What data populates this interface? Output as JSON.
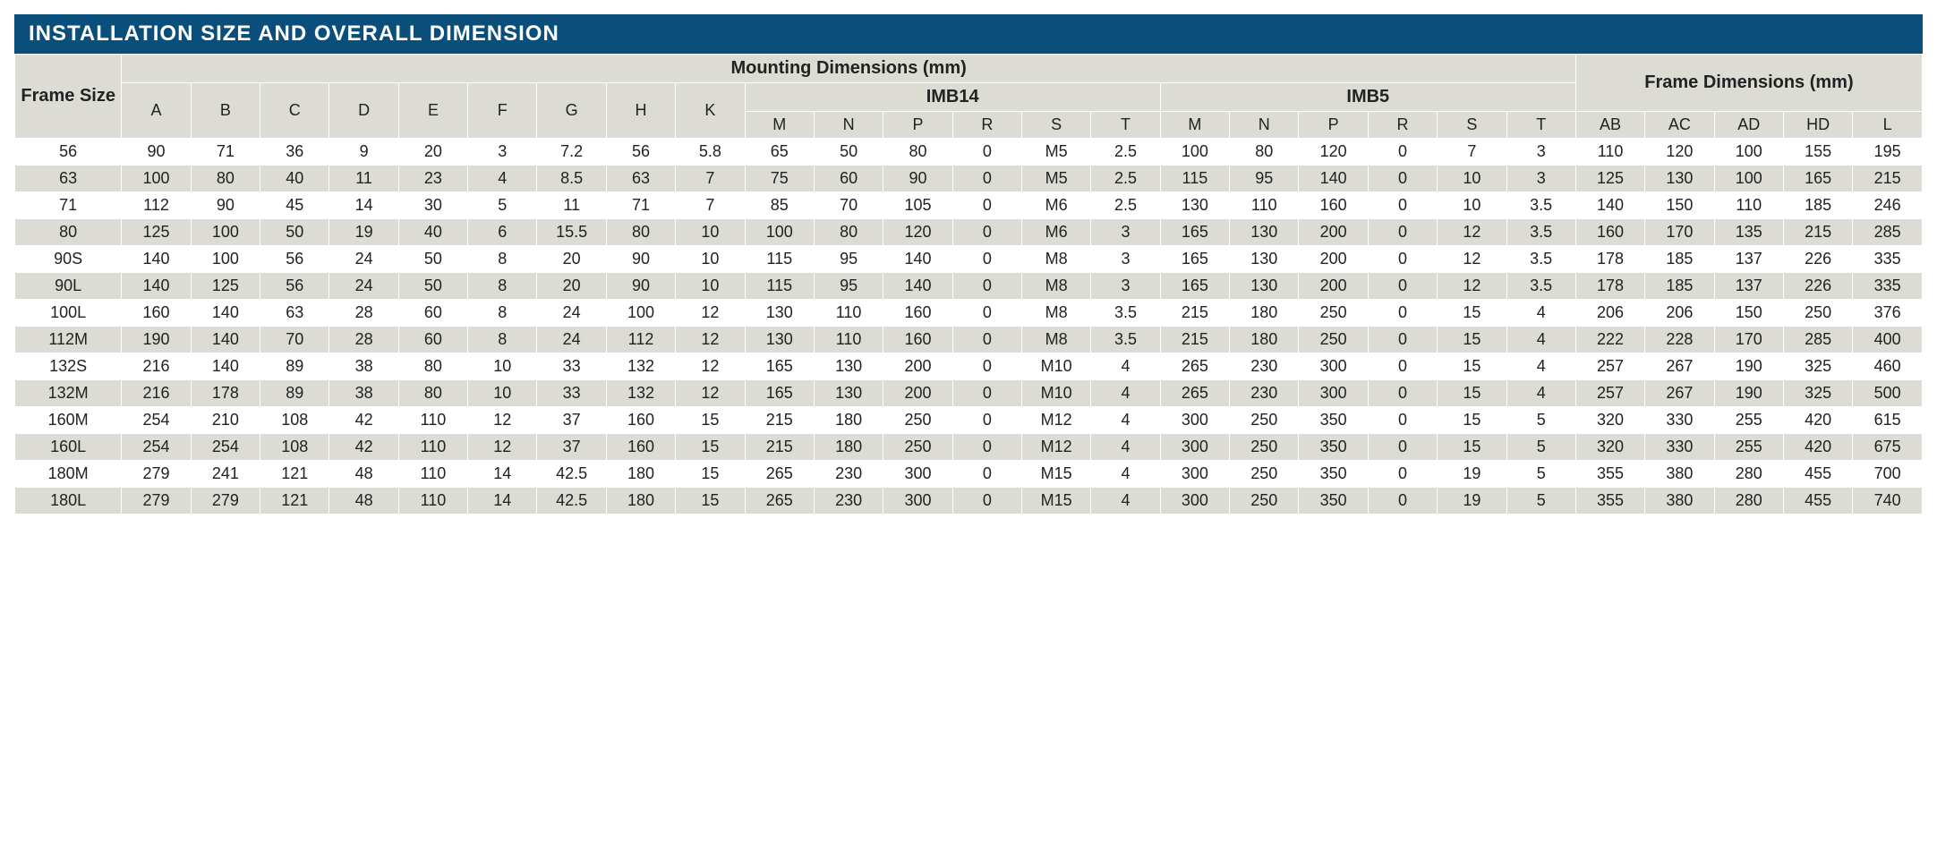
{
  "title": "INSTALLATION SIZE AND OVERALL DIMENSION",
  "group_headers": {
    "frame_size": "Frame Size",
    "mounting": "Mounting Dimensions (mm)",
    "imb14": "IMB14",
    "imb5": "IMB5",
    "frame_dims": "Frame Dimensions (mm)"
  },
  "columns": [
    "A",
    "B",
    "C",
    "D",
    "E",
    "F",
    "G",
    "H",
    "K",
    "M",
    "N",
    "P",
    "R",
    "S",
    "T",
    "M",
    "N",
    "P",
    "R",
    "S",
    "T",
    "AB",
    "AC",
    "AD",
    "HD",
    "L"
  ],
  "row_labels": [
    "56",
    "63",
    "71",
    "80",
    "90S",
    "90L",
    "100L",
    "112M",
    "132S",
    "132M",
    "160M",
    "160L",
    "180M",
    "180L"
  ],
  "rows": [
    [
      "90",
      "71",
      "36",
      "9",
      "20",
      "3",
      "7.2",
      "56",
      "5.8",
      "65",
      "50",
      "80",
      "0",
      "M5",
      "2.5",
      "100",
      "80",
      "120",
      "0",
      "7",
      "3",
      "110",
      "120",
      "100",
      "155",
      "195"
    ],
    [
      "100",
      "80",
      "40",
      "11",
      "23",
      "4",
      "8.5",
      "63",
      "7",
      "75",
      "60",
      "90",
      "0",
      "M5",
      "2.5",
      "115",
      "95",
      "140",
      "0",
      "10",
      "3",
      "125",
      "130",
      "100",
      "165",
      "215"
    ],
    [
      "112",
      "90",
      "45",
      "14",
      "30",
      "5",
      "11",
      "71",
      "7",
      "85",
      "70",
      "105",
      "0",
      "M6",
      "2.5",
      "130",
      "110",
      "160",
      "0",
      "10",
      "3.5",
      "140",
      "150",
      "110",
      "185",
      "246"
    ],
    [
      "125",
      "100",
      "50",
      "19",
      "40",
      "6",
      "15.5",
      "80",
      "10",
      "100",
      "80",
      "120",
      "0",
      "M6",
      "3",
      "165",
      "130",
      "200",
      "0",
      "12",
      "3.5",
      "160",
      "170",
      "135",
      "215",
      "285"
    ],
    [
      "140",
      "100",
      "56",
      "24",
      "50",
      "8",
      "20",
      "90",
      "10",
      "115",
      "95",
      "140",
      "0",
      "M8",
      "3",
      "165",
      "130",
      "200",
      "0",
      "12",
      "3.5",
      "178",
      "185",
      "137",
      "226",
      "335"
    ],
    [
      "140",
      "125",
      "56",
      "24",
      "50",
      "8",
      "20",
      "90",
      "10",
      "115",
      "95",
      "140",
      "0",
      "M8",
      "3",
      "165",
      "130",
      "200",
      "0",
      "12",
      "3.5",
      "178",
      "185",
      "137",
      "226",
      "335"
    ],
    [
      "160",
      "140",
      "63",
      "28",
      "60",
      "8",
      "24",
      "100",
      "12",
      "130",
      "110",
      "160",
      "0",
      "M8",
      "3.5",
      "215",
      "180",
      "250",
      "0",
      "15",
      "4",
      "206",
      "206",
      "150",
      "250",
      "376"
    ],
    [
      "190",
      "140",
      "70",
      "28",
      "60",
      "8",
      "24",
      "112",
      "12",
      "130",
      "110",
      "160",
      "0",
      "M8",
      "3.5",
      "215",
      "180",
      "250",
      "0",
      "15",
      "4",
      "222",
      "228",
      "170",
      "285",
      "400"
    ],
    [
      "216",
      "140",
      "89",
      "38",
      "80",
      "10",
      "33",
      "132",
      "12",
      "165",
      "130",
      "200",
      "0",
      "M10",
      "4",
      "265",
      "230",
      "300",
      "0",
      "15",
      "4",
      "257",
      "267",
      "190",
      "325",
      "460"
    ],
    [
      "216",
      "178",
      "89",
      "38",
      "80",
      "10",
      "33",
      "132",
      "12",
      "165",
      "130",
      "200",
      "0",
      "M10",
      "4",
      "265",
      "230",
      "300",
      "0",
      "15",
      "4",
      "257",
      "267",
      "190",
      "325",
      "500"
    ],
    [
      "254",
      "210",
      "108",
      "42",
      "110",
      "12",
      "37",
      "160",
      "15",
      "215",
      "180",
      "250",
      "0",
      "M12",
      "4",
      "300",
      "250",
      "350",
      "0",
      "15",
      "5",
      "320",
      "330",
      "255",
      "420",
      "615"
    ],
    [
      "254",
      "254",
      "108",
      "42",
      "110",
      "12",
      "37",
      "160",
      "15",
      "215",
      "180",
      "250",
      "0",
      "M12",
      "4",
      "300",
      "250",
      "350",
      "0",
      "15",
      "5",
      "320",
      "330",
      "255",
      "420",
      "675"
    ],
    [
      "279",
      "241",
      "121",
      "48",
      "110",
      "14",
      "42.5",
      "180",
      "15",
      "265",
      "230",
      "300",
      "0",
      "M15",
      "4",
      "300",
      "250",
      "350",
      "0",
      "19",
      "5",
      "355",
      "380",
      "280",
      "455",
      "700"
    ],
    [
      "279",
      "279",
      "121",
      "48",
      "110",
      "14",
      "42.5",
      "180",
      "15",
      "265",
      "230",
      "300",
      "0",
      "M15",
      "4",
      "300",
      "250",
      "350",
      "0",
      "19",
      "5",
      "355",
      "380",
      "280",
      "455",
      "740"
    ]
  ],
  "style": {
    "title_bg": "#0a4f7c",
    "title_color": "#ffffff",
    "title_fontsize": 24,
    "header_bg": "#dcdcd5",
    "row_even_bg": "#ffffff",
    "row_odd_bg": "#dcdcd5",
    "border_color": "#ffffff",
    "cell_fontsize": 18,
    "text_color": "#222222"
  }
}
